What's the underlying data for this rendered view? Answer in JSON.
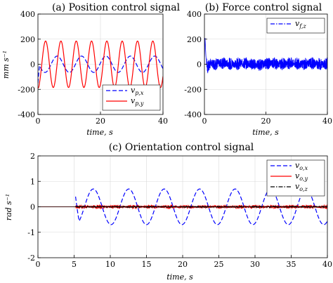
{
  "chart_data": [
    {
      "id": "a",
      "type": "line",
      "title": "(a) Position control signal",
      "xlabel": "time, s",
      "ylabel": "mm s⁻¹",
      "xlim": [
        0,
        40
      ],
      "ylim": [
        -400,
        400
      ],
      "xticks": [
        0,
        20,
        40
      ],
      "yticks": [
        -400,
        -200,
        0,
        200,
        400
      ],
      "grid": true,
      "legend": "bottom-right",
      "series": [
        {
          "name": "v_{p,x}",
          "color": "#0000ff",
          "dash": "dashed",
          "amplitude": 65,
          "period_s": 7.8,
          "start_s": 0,
          "x": [
            0,
            0.4,
            1.5,
            3,
            5,
            7,
            9,
            11,
            13,
            15,
            17,
            19,
            21,
            23,
            25,
            27,
            29,
            31,
            33,
            35,
            37,
            39,
            40
          ],
          "y": [
            -150,
            20,
            55,
            65,
            20,
            -45,
            -65,
            -15,
            45,
            65,
            25,
            -40,
            -65,
            -20,
            40,
            65,
            30,
            -35,
            -62,
            -25,
            35,
            62,
            40
          ]
        },
        {
          "name": "v_{p,y}",
          "color": "#ff0000",
          "dash": "solid",
          "amplitude": 185,
          "period_s": 4.9,
          "start_s": 0,
          "x": [
            0,
            1.2,
            2.45,
            3.7,
            4.9,
            6.1,
            7.35,
            8.6,
            9.8,
            11,
            12.25,
            13.5,
            14.7,
            15.9,
            17.15,
            18.4,
            19.6,
            20.8,
            22.05,
            23.3,
            24.5,
            25.7,
            26.95,
            28.2,
            29.4,
            30.6,
            31.85,
            33.1,
            34.3,
            35.5,
            36.75,
            38,
            39.2,
            40
          ],
          "y": [
            -190,
            0,
            185,
            0,
            -185,
            0,
            185,
            0,
            -185,
            0,
            185,
            0,
            -185,
            0,
            185,
            0,
            -185,
            0,
            185,
            0,
            -185,
            0,
            185,
            0,
            -185,
            0,
            185,
            0,
            -185,
            0,
            185,
            0,
            -185,
            -60
          ]
        }
      ]
    },
    {
      "id": "b",
      "type": "line",
      "title": "(b) Force control signal",
      "xlabel": "time, s",
      "ylabel": "",
      "xlim": [
        0,
        40
      ],
      "ylim": [
        -400,
        400
      ],
      "xticks": [
        0,
        20,
        40
      ],
      "yticks": [
        -400,
        -200,
        0,
        200,
        400
      ],
      "grid": true,
      "legend": "top-right",
      "series": [
        {
          "name": "v_{f,z}",
          "color": "#0000ff",
          "dash": "dashdot",
          "noise_amplitude": 50,
          "x": [
            0,
            0.2,
            0.5,
            1,
            2,
            3,
            4,
            6,
            8,
            10,
            12,
            14,
            16,
            18,
            20,
            22,
            24,
            26,
            28,
            30,
            32,
            34,
            36,
            38,
            40
          ],
          "y": [
            0,
            210,
            60,
            -30,
            10,
            0,
            5,
            10,
            5,
            0,
            10,
            5,
            0,
            -5,
            5,
            10,
            0,
            5,
            10,
            5,
            0,
            10,
            5,
            0,
            5
          ]
        }
      ]
    },
    {
      "id": "c",
      "type": "line",
      "title": "(c) Orientation control signal",
      "xlabel": "time, s",
      "ylabel": "rad s⁻¹",
      "xlim": [
        0,
        40
      ],
      "ylim": [
        -2,
        2
      ],
      "xticks": [
        0,
        5,
        10,
        15,
        20,
        25,
        30,
        35,
        40
      ],
      "yticks": [
        -2,
        -1,
        0,
        1,
        2
      ],
      "grid": true,
      "legend": "top-right",
      "series": [
        {
          "name": "v_{o,x}",
          "color": "#0000ff",
          "dash": "dashed",
          "amplitude": 0.7,
          "period_s": 4.9,
          "start_s": 5.2,
          "x": [
            5.2,
            6.4,
            7.65,
            8.9,
            10.1,
            11.3,
            12.55,
            13.8,
            15,
            16.2,
            17.45,
            18.7,
            19.9,
            21.1,
            22.35,
            23.6,
            24.8,
            26,
            27.25,
            28.5,
            29.7,
            30.9,
            32.15,
            33.4,
            34.6,
            35.8,
            37.05,
            38.3,
            39.5,
            40
          ],
          "y": [
            0.4,
            0.0,
            0.7,
            0.0,
            -0.7,
            0.0,
            0.7,
            0.0,
            -0.7,
            0.0,
            0.7,
            0.0,
            -0.7,
            0.0,
            0.7,
            0.0,
            -0.7,
            0.0,
            0.7,
            0.0,
            -0.7,
            0.0,
            0.7,
            0.0,
            -0.7,
            0.0,
            0.65,
            0.0,
            -0.65,
            -0.7
          ]
        },
        {
          "name": "v_{o,y}",
          "color": "#ff0000",
          "dash": "solid",
          "noise_amplitude": 0.08,
          "start_s": 5.2,
          "x": [
            0,
            5.2,
            40
          ],
          "y": [
            0,
            0,
            0
          ]
        },
        {
          "name": "v_{o,z}",
          "color": "#000000",
          "dash": "dashdot",
          "noise_amplitude": 0.03,
          "start_s": 5.2,
          "x": [
            0,
            5.2,
            40
          ],
          "y": [
            0,
            0,
            0
          ]
        }
      ]
    }
  ]
}
